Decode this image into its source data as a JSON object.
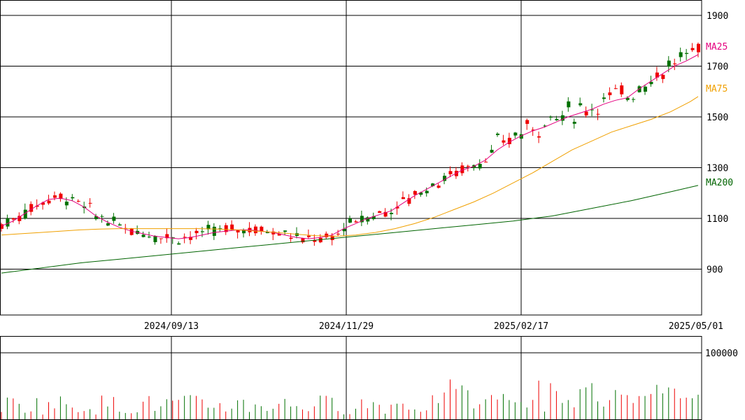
{
  "chart_data": [
    {
      "type": "candlestick",
      "title": "",
      "x_ticks": [
        "2024/09/13",
        "2024/11/29",
        "2025/02/17",
        "2025/05/01"
      ],
      "y_ticks": [
        900,
        1100,
        1300,
        1500,
        1700,
        1900
      ],
      "ylim": [
        720,
        1960
      ],
      "grid": true,
      "series": [
        {
          "name": "MA25",
          "color": "#e4007f",
          "points": [
            [
              0,
              1070
            ],
            [
              6,
              1090
            ],
            [
              12,
              1120
            ],
            [
              18,
              1150
            ],
            [
              24,
              1175
            ],
            [
              30,
              1180
            ],
            [
              36,
              1170
            ],
            [
              42,
              1145
            ],
            [
              48,
              1110
            ],
            [
              54,
              1085
            ],
            [
              60,
              1065
            ],
            [
              66,
              1050
            ],
            [
              72,
              1040
            ],
            [
              78,
              1030
            ],
            [
              84,
              1025
            ],
            [
              90,
              1020
            ],
            [
              96,
              1025
            ],
            [
              102,
              1035
            ],
            [
              108,
              1045
            ],
            [
              114,
              1050
            ],
            [
              120,
              1055
            ],
            [
              126,
              1055
            ],
            [
              132,
              1050
            ],
            [
              138,
              1045
            ],
            [
              144,
              1035
            ],
            [
              150,
              1025
            ],
            [
              156,
              1020
            ],
            [
              162,
              1025
            ],
            [
              168,
              1035
            ],
            [
              174,
              1060
            ],
            [
              180,
              1080
            ],
            [
              186,
              1100
            ],
            [
              192,
              1115
            ],
            [
              198,
              1130
            ],
            [
              204,
              1160
            ],
            [
              210,
              1190
            ],
            [
              216,
              1215
            ],
            [
              222,
              1240
            ],
            [
              228,
              1265
            ],
            [
              234,
              1290
            ],
            [
              240,
              1305
            ],
            [
              246,
              1330
            ],
            [
              252,
              1370
            ],
            [
              258,
              1400
            ],
            [
              264,
              1425
            ],
            [
              270,
              1445
            ],
            [
              276,
              1460
            ],
            [
              282,
              1480
            ],
            [
              288,
              1500
            ],
            [
              294,
              1515
            ],
            [
              300,
              1530
            ],
            [
              306,
              1550
            ],
            [
              312,
              1565
            ],
            [
              318,
              1575
            ],
            [
              324,
              1610
            ],
            [
              330,
              1640
            ],
            [
              336,
              1670
            ],
            [
              342,
              1700
            ],
            [
              348,
              1720
            ],
            [
              354,
              1745
            ]
          ]
        },
        {
          "name": "MA75",
          "color": "#f0a000",
          "points": [
            [
              0,
              1035
            ],
            [
              10,
              1040
            ],
            [
              20,
              1045
            ],
            [
              30,
              1050
            ],
            [
              40,
              1055
            ],
            [
              50,
              1058
            ],
            [
              60,
              1060
            ],
            [
              70,
              1060
            ],
            [
              80,
              1060
            ],
            [
              90,
              1060
            ],
            [
              100,
              1060
            ],
            [
              110,
              1058
            ],
            [
              120,
              1055
            ],
            [
              130,
              1050
            ],
            [
              140,
              1045
            ],
            [
              150,
              1038
            ],
            [
              160,
              1032
            ],
            [
              170,
              1030
            ],
            [
              180,
              1035
            ],
            [
              190,
              1045
            ],
            [
              200,
              1060
            ],
            [
              210,
              1080
            ],
            [
              220,
              1105
            ],
            [
              230,
              1135
            ],
            [
              240,
              1165
            ],
            [
              250,
              1200
            ],
            [
              260,
              1240
            ],
            [
              270,
              1280
            ],
            [
              280,
              1325
            ],
            [
              290,
              1370
            ],
            [
              300,
              1405
            ],
            [
              310,
              1440
            ],
            [
              320,
              1465
            ],
            [
              330,
              1490
            ],
            [
              340,
              1520
            ],
            [
              350,
              1560
            ],
            [
              354,
              1580
            ]
          ]
        },
        {
          "name": "MA200",
          "color": "#006400",
          "points": [
            [
              0,
              885
            ],
            [
              20,
              905
            ],
            [
              40,
              925
            ],
            [
              60,
              940
            ],
            [
              80,
              955
            ],
            [
              100,
              970
            ],
            [
              120,
              985
            ],
            [
              140,
              1000
            ],
            [
              160,
              1015
            ],
            [
              180,
              1030
            ],
            [
              200,
              1045
            ],
            [
              220,
              1060
            ],
            [
              240,
              1075
            ],
            [
              260,
              1090
            ],
            [
              280,
              1110
            ],
            [
              300,
              1140
            ],
            [
              320,
              1170
            ],
            [
              340,
              1205
            ],
            [
              354,
              1230
            ]
          ]
        }
      ]
    },
    {
      "type": "bar",
      "title": "",
      "y_ticks": [
        100000
      ],
      "ylim": [
        0,
        125000
      ],
      "series": [
        {
          "name": "Volume",
          "values": []
        }
      ]
    }
  ]
}
